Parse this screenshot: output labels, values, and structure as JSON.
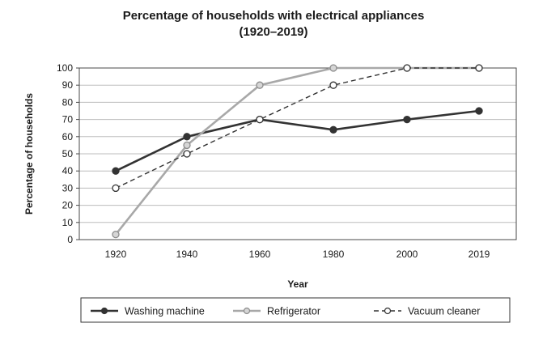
{
  "chart_data": {
    "type": "line",
    "title": "Percentage of households with electrical appliances",
    "subtitle": "(1920–2019)",
    "xlabel": "Year",
    "ylabel": "Percentage of households",
    "categories": [
      "1920",
      "1940",
      "1960",
      "1980",
      "2000",
      "2019"
    ],
    "yticks": [
      "0",
      "10",
      "20",
      "30",
      "40",
      "50",
      "60",
      "70",
      "80",
      "90",
      "100"
    ],
    "ylim": [
      0,
      100
    ],
    "grid": "horizontal",
    "legend_position": "bottom",
    "series": [
      {
        "name": "Washing machine",
        "values": [
          40,
          60,
          70,
          64,
          70,
          75
        ],
        "color": "#333333",
        "marker": "filled",
        "dashed": false
      },
      {
        "name": "Refrigerator",
        "values": [
          3,
          55,
          90,
          100,
          100,
          100
        ],
        "color": "#a8a8a8",
        "marker": "gray",
        "dashed": false
      },
      {
        "name": "Vacuum cleaner",
        "values": [
          30,
          50,
          70,
          90,
          100,
          100
        ],
        "color": "#333333",
        "marker": "open",
        "dashed": true
      }
    ]
  }
}
